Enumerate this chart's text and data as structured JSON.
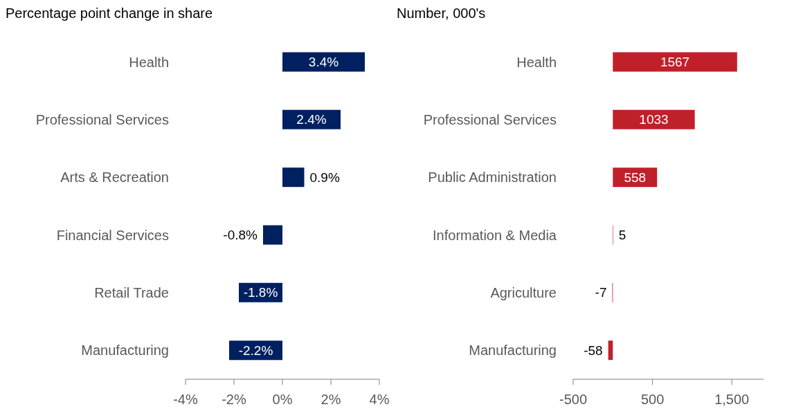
{
  "chart_data": [
    {
      "type": "bar",
      "orientation": "horizontal",
      "subtitle": "Percentage point change in share",
      "categories": [
        "Health",
        "Professional Services",
        "Arts & Recreation",
        "Financial Services",
        "Retail Trade",
        "Manufacturing"
      ],
      "values": [
        3.4,
        2.4,
        0.9,
        -0.8,
        -1.8,
        -2.2
      ],
      "value_labels": [
        "3.4%",
        "2.4%",
        "0.9%",
        "-0.8%",
        "-1.8%",
        "-2.2%"
      ],
      "color": "#002060",
      "xlim": [
        -4,
        4
      ],
      "xticks": [
        {
          "value": -4,
          "label": "-4%"
        },
        {
          "value": -2,
          "label": "-2%"
        },
        {
          "value": 0,
          "label": "0%"
        },
        {
          "value": 2,
          "label": "2%"
        },
        {
          "value": 4,
          "label": "4%"
        }
      ],
      "grid": false,
      "legend": false
    },
    {
      "type": "bar",
      "orientation": "horizontal",
      "subtitle": "Number, 000's",
      "categories": [
        "Health",
        "Professional Services",
        "Public Administration",
        "Information & Media",
        "Agriculture",
        "Manufacturing"
      ],
      "values": [
        1567,
        1033,
        558,
        5,
        -7,
        -58
      ],
      "data_labels": true,
      "color": "#c0202a",
      "xlim": [
        -500,
        1900
      ],
      "xticks": [
        -500,
        500,
        {
          "value": 1500,
          "label": "1,500"
        }
      ],
      "grid": false,
      "legend": false
    }
  ]
}
